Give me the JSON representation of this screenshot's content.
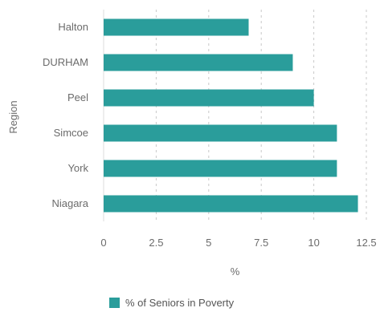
{
  "chart_data": {
    "type": "bar",
    "orientation": "horizontal",
    "categories": [
      "Halton",
      "DURHAM",
      "Peel",
      "Simcoe",
      "York",
      "Niagara"
    ],
    "series": [
      {
        "name": "% of Seniors in Poverty",
        "values": [
          6.9,
          9.0,
          10.0,
          11.1,
          11.1,
          12.1
        ],
        "color": "#2a9d9b"
      }
    ],
    "xlabel": "%",
    "ylabel": "Region",
    "xlim": [
      0,
      12.5
    ],
    "xticks": [
      0,
      2.5,
      5,
      7.5,
      10,
      12.5
    ],
    "xtick_labels": [
      "0",
      "2.5",
      "5",
      "7.5",
      "10",
      "12.5"
    ],
    "grid": "vertical dashed",
    "legend_placement": "bottom"
  }
}
